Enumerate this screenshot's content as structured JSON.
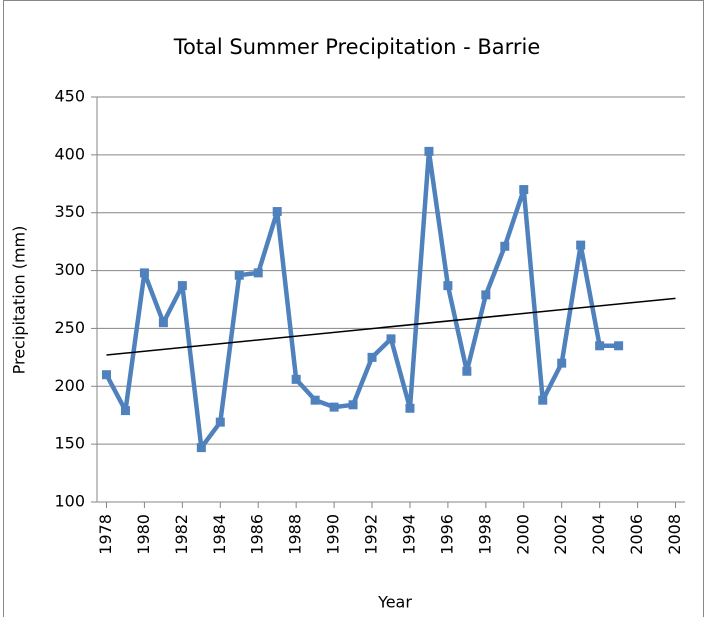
{
  "chart_data": {
    "type": "line",
    "title": "Total Summer Precipitation - Barrie",
    "x_label": "Year",
    "y_label": "Precipitation (mm)",
    "x": [
      1978,
      1979,
      1980,
      1981,
      1982,
      1983,
      1984,
      1985,
      1986,
      1987,
      1988,
      1989,
      1990,
      1991,
      1992,
      1993,
      1994,
      1995,
      1996,
      1997,
      1998,
      1999,
      2000,
      2001,
      2002,
      2003,
      2004,
      2005
    ],
    "series": [
      {
        "name": "Precipitation",
        "color": "#4f81bd",
        "values": [
          210,
          179,
          298,
          255,
          287,
          147,
          169,
          296,
          298,
          351,
          206,
          188,
          182,
          184,
          225,
          241,
          181,
          403,
          287,
          213,
          279,
          321,
          370,
          188,
          220,
          322,
          235,
          235
        ]
      }
    ],
    "trendline": {
      "x": [
        1978,
        2008
      ],
      "values": [
        227,
        276
      ],
      "color": "#000000"
    },
    "xlim": [
      1977.5,
      2008.5
    ],
    "xticks": [
      1978,
      1980,
      1982,
      1984,
      1986,
      1988,
      1990,
      1992,
      1994,
      1996,
      1998,
      2000,
      2002,
      2004,
      2006,
      2008
    ],
    "ylim": [
      100,
      450
    ],
    "yticks": [
      100,
      150,
      200,
      250,
      300,
      350,
      400,
      450
    ],
    "grid": true
  }
}
